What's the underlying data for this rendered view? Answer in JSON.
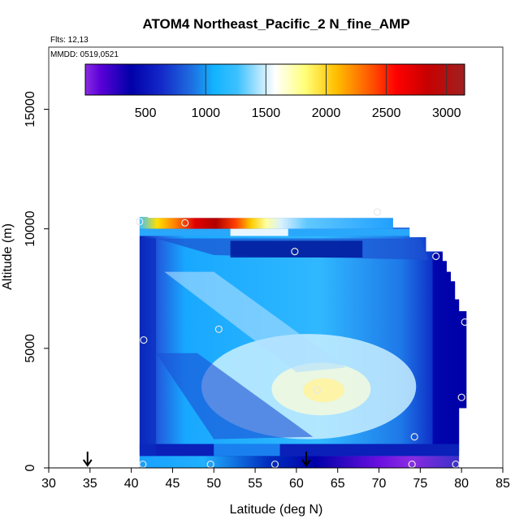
{
  "chart_data": {
    "type": "heatmap",
    "title": "ATOM4 Northeast_Pacific_2 N_fine_AMP",
    "flights_label": "Flts: 12,13",
    "dates_label": "MMDD: 0519,0521",
    "xlabel": "Latitude (deg N)",
    "ylabel": "Altitude (m)",
    "xlim": [
      30,
      85
    ],
    "ylim": [
      0,
      17600
    ],
    "x_ticks": [
      "30",
      "35",
      "40",
      "45",
      "50",
      "55",
      "60",
      "65",
      "70",
      "75",
      "80",
      "85"
    ],
    "y_ticks": [
      "0",
      "5000",
      "10000",
      "15000"
    ],
    "colorbar": {
      "range": [
        0,
        3150
      ],
      "tick_values": [
        500,
        1000,
        1500,
        2000,
        2500,
        3000
      ],
      "tick_labels": [
        "500",
        "1000",
        "1500",
        "2000",
        "2500",
        "3000"
      ]
    },
    "arrows_latitude": [
      34.7,
      61.2
    ],
    "sample_points": [
      {
        "lat": 41.0,
        "alt": 10300
      },
      {
        "lat": 46.5,
        "alt": 10250
      },
      {
        "lat": 69.8,
        "alt": 10700
      },
      {
        "lat": 59.8,
        "alt": 9050
      },
      {
        "lat": 76.9,
        "alt": 8850
      },
      {
        "lat": 80.4,
        "alt": 6100
      },
      {
        "lat": 41.5,
        "alt": 5350
      },
      {
        "lat": 50.6,
        "alt": 5800
      },
      {
        "lat": 62.5,
        "alt": 3250
      },
      {
        "lat": 80.0,
        "alt": 2950
      },
      {
        "lat": 74.3,
        "alt": 1300
      },
      {
        "lat": 41.4,
        "alt": 150
      },
      {
        "lat": 49.6,
        "alt": 150
      },
      {
        "lat": 57.4,
        "alt": 150
      },
      {
        "lat": 74.0,
        "alt": 150
      },
      {
        "lat": 79.3,
        "alt": 150
      }
    ]
  }
}
